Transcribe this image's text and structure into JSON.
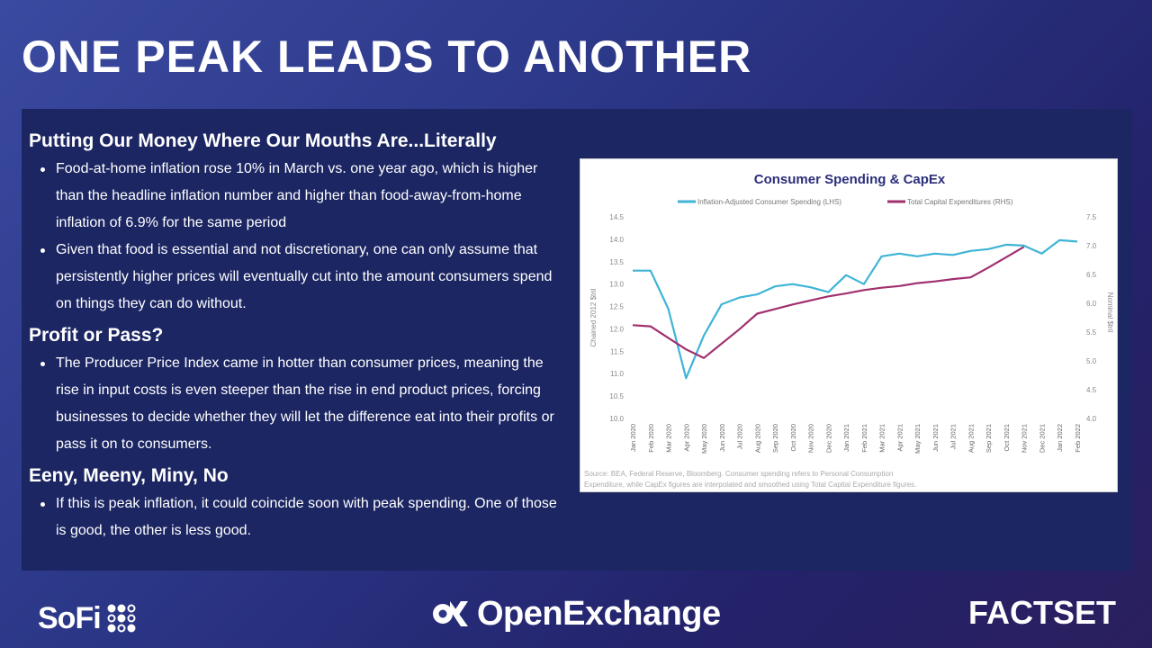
{
  "title": "ONE PEAK LEADS TO ANOTHER",
  "sections": [
    {
      "heading": "Putting Our Money Where Our Mouths Are...Literally",
      "bullets": [
        "Food-at-home inflation rose 10% in March vs. one year ago, which is higher than the headline inflation number and higher than food-away-from-home inflation of 6.9% for the same period",
        "Given that food is essential and not discretionary, one can only assume that persistently higher prices will eventually cut into the amount consumers spend on things they can do without."
      ]
    },
    {
      "heading": "Profit or Pass?",
      "bullets": [
        " The Producer Price Index came in hotter than consumer prices, meaning the rise in input costs is even steeper than the rise in end product prices, forcing businesses to decide whether they will let the difference eat into their profits or pass it on to consumers."
      ]
    },
    {
      "heading": "Eeny, Meeny, Miny, No",
      "bullets": [
        "If this is peak inflation, it could coincide soon with peak spending. One of those is good, the other is less good."
      ]
    }
  ],
  "chart_data": {
    "type": "line",
    "title": "Consumer Spending & CapEx",
    "ylabel": "Chained 2012 $tril",
    "y2label": "Nominal $tril",
    "ylim": [
      10.0,
      14.5
    ],
    "y2lim": [
      4.0,
      7.5
    ],
    "yticks": [
      "10.0",
      "10.5",
      "11.0",
      "11.5",
      "12.0",
      "12.5",
      "13.0",
      "13.5",
      "14.0",
      "14.5"
    ],
    "y2ticks": [
      "4.0",
      "4.5",
      "5.0",
      "5.5",
      "6.0",
      "6.5",
      "7.0",
      "7.5"
    ],
    "categories": [
      "Jan 2020",
      "Feb 2020",
      "Mar 2020",
      "Apr 2020",
      "May 2020",
      "Jun 2020",
      "Jul 2020",
      "Aug 2020",
      "Sep 2020",
      "Oct 2020",
      "Nov 2020",
      "Dec 2020",
      "Jan 2021",
      "Feb 2021",
      "Mar 2021",
      "Apr 2021",
      "May 2021",
      "Jun 2021",
      "Jul 2021",
      "Aug 2021",
      "Sep 2021",
      "Oct 2021",
      "Nov 2021",
      "Dec 2021",
      "Jan 2022",
      "Feb 2022"
    ],
    "series": [
      {
        "name": "Inflation-Adjusted Consumer Spending (LHS)",
        "axis": "left",
        "color": "#3fb4d6",
        "values": [
          13.3,
          13.3,
          12.45,
          10.9,
          11.85,
          12.55,
          12.7,
          12.77,
          12.95,
          13.0,
          12.93,
          12.82,
          13.2,
          13.0,
          13.62,
          13.68,
          13.62,
          13.68,
          13.65,
          13.74,
          13.78,
          13.88,
          13.86,
          13.68,
          13.98,
          13.95
        ]
      },
      {
        "name": "Total Capital Expenditures (RHS)",
        "axis": "right",
        "color": "#a0306f",
        "values": [
          5.62,
          5.6,
          5.4,
          5.2,
          5.05,
          5.3,
          5.55,
          5.82,
          5.9,
          5.98,
          6.05,
          6.12,
          6.17,
          6.23,
          6.27,
          6.3,
          6.35,
          6.38,
          6.42,
          6.45,
          6.62,
          6.8,
          6.98,
          null,
          null,
          null
        ]
      }
    ],
    "source": "Source: BEA, Federal Reserve, Bloomberg. Consumer spending refers to Personal Consumption Expenditure, while CapEx figures are interpolated and smoothed using Total Capital Expenditure figures.",
    "legend_position": "top-center"
  },
  "footer": {
    "sofi": "SoFi",
    "openexchange": "OpenExchange",
    "factset": "FACTSET"
  },
  "colors": {
    "background": "#2b3686",
    "panel": "#1c2663",
    "spending_line": "#3fb4d6",
    "capex_line": "#a0306f",
    "chart_title": "#2a2f7a"
  }
}
